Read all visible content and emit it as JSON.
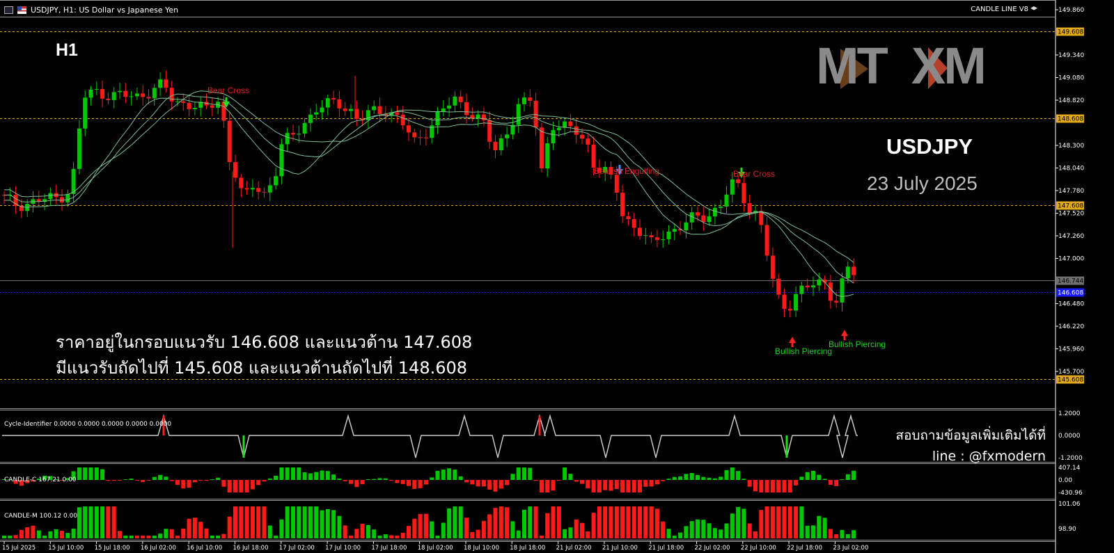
{
  "header": {
    "title": "USDJPY, H1:  US Dollar vs Japanese Yen",
    "indicator": "CANDLE LINE V8"
  },
  "overlay": {
    "timeframe": "H1",
    "logo_left": "MT",
    "logo_right": "XM",
    "symbol": "USDJPY",
    "date": "23 July 2025",
    "comment_line1": "ราคาอยู่ในกรอบแนวรับ 146.608 และแนวต้าน 147.608",
    "comment_line2": "มีแนวรับถัดไปที่ 145.608 และแนวต้านถัดไปที่ 148.608",
    "contact_line1": "สอบถามข้อมูลเพิ่มเติมได้ที่",
    "contact_line2": "line : @fxmodern"
  },
  "price_axis": {
    "ticks": [
      "149.860",
      "149.340",
      "149.080",
      "148.820",
      "148.300",
      "148.040",
      "147.780",
      "147.520",
      "147.260",
      "147.000",
      "146.480",
      "146.220",
      "145.960",
      "145.700"
    ],
    "levels": [
      {
        "label": "149.608",
        "style": "dashed",
        "color": "#e0a81a"
      },
      {
        "label": "148.608",
        "style": "dashed",
        "color": "#e0a81a"
      },
      {
        "label": "147.608",
        "style": "dashed",
        "color": "#e0a81a"
      },
      {
        "label": "145.608",
        "style": "dashed",
        "color": "#e0a81a"
      },
      {
        "label": "146.744",
        "style": "solid",
        "color": "#707070"
      },
      {
        "label": "146.608",
        "style": "dotted",
        "color": "#1a1aff"
      }
    ]
  },
  "time_axis": [
    "15 Jul 2025",
    "15 Jul 10:00",
    "15 Jul 18:00",
    "16 Jul 02:00",
    "16 Jul 10:00",
    "16 Jul 18:00",
    "17 Jul 02:00",
    "17 Jul 10:00",
    "17 Jul 18:00",
    "18 Jul 02:00",
    "18 Jul 10:00",
    "18 Jul 18:00",
    "21 Jul 02:00",
    "21 Jul 10:00",
    "21 Jul 18:00",
    "22 Jul 02:00",
    "22 Jul 10:00",
    "22 Jul 18:00",
    "23 Jul 02:00"
  ],
  "patterns": [
    {
      "label": "Bear Cross",
      "color": "#e02020"
    },
    {
      "label": "Bearish Engulfing",
      "color": "#e02020"
    },
    {
      "label": "Bear Cross",
      "color": "#e02020"
    },
    {
      "label": "Bullish Piercing",
      "color": "#22d022"
    },
    {
      "label": "Bullish Piercing",
      "color": "#22d022"
    }
  ],
  "subwindows": [
    {
      "label": "Cycle-Identifier 0.0000 0.0000 0.0000 0.0000 0.0000",
      "ticks": [
        "1.2000",
        "0.0000",
        "-1.2000"
      ]
    },
    {
      "label": "CANDLE-C 167.21 0.00",
      "ticks": [
        "407.14",
        "0.00",
        "-430.96"
      ]
    },
    {
      "label": "CANDLE-M 100.12 0.00",
      "ticks": [
        "101.06",
        "98.90"
      ]
    }
  ],
  "colors": {
    "bull": "#00c800",
    "bear": "#ff1a1a",
    "ma": "#7fbf9a",
    "grid": "#777777"
  }
}
